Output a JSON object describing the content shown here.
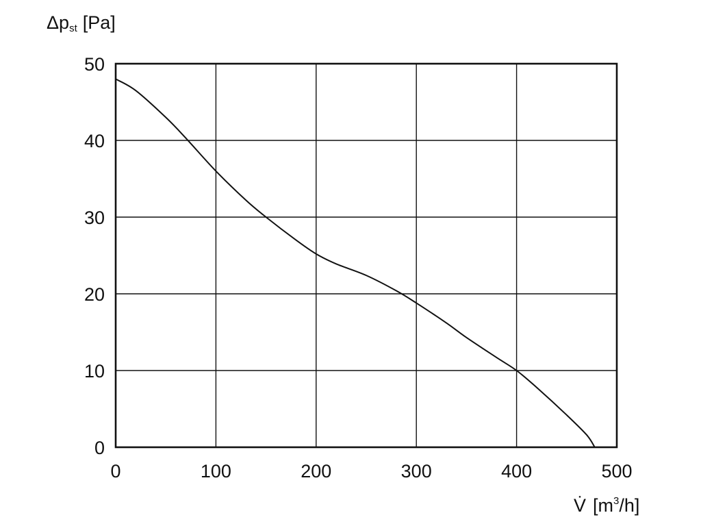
{
  "chart_data": {
    "type": "line",
    "title": "",
    "ylabel": {
      "symbol": "Δp",
      "subscript": "st",
      "unit": "[Pa]"
    },
    "xlabel": {
      "symbol": "V̇",
      "unit_open": "[m",
      "unit_sup": "3",
      "unit_close": "/h]"
    },
    "xlim": [
      0,
      500
    ],
    "ylim": [
      0,
      50
    ],
    "x_ticks": [
      "0",
      "100",
      "200",
      "300",
      "400",
      "500"
    ],
    "y_ticks": [
      "0",
      "10",
      "20",
      "30",
      "40",
      "50"
    ],
    "grid": true,
    "legend": "none",
    "line_color": "#111111",
    "series": [
      {
        "x": [
          0,
          20,
          50,
          70,
          100,
          130,
          150,
          180,
          200,
          220,
          250,
          280,
          300,
          330,
          350,
          380,
          400,
          420,
          450,
          470,
          478
        ],
        "y": [
          48,
          46.5,
          43,
          40.3,
          36,
          32.2,
          30,
          27,
          25.2,
          23.9,
          22.4,
          20.4,
          18.8,
          16.2,
          14.3,
          11.7,
          10,
          7.8,
          4.2,
          1.6,
          0
        ]
      }
    ]
  }
}
